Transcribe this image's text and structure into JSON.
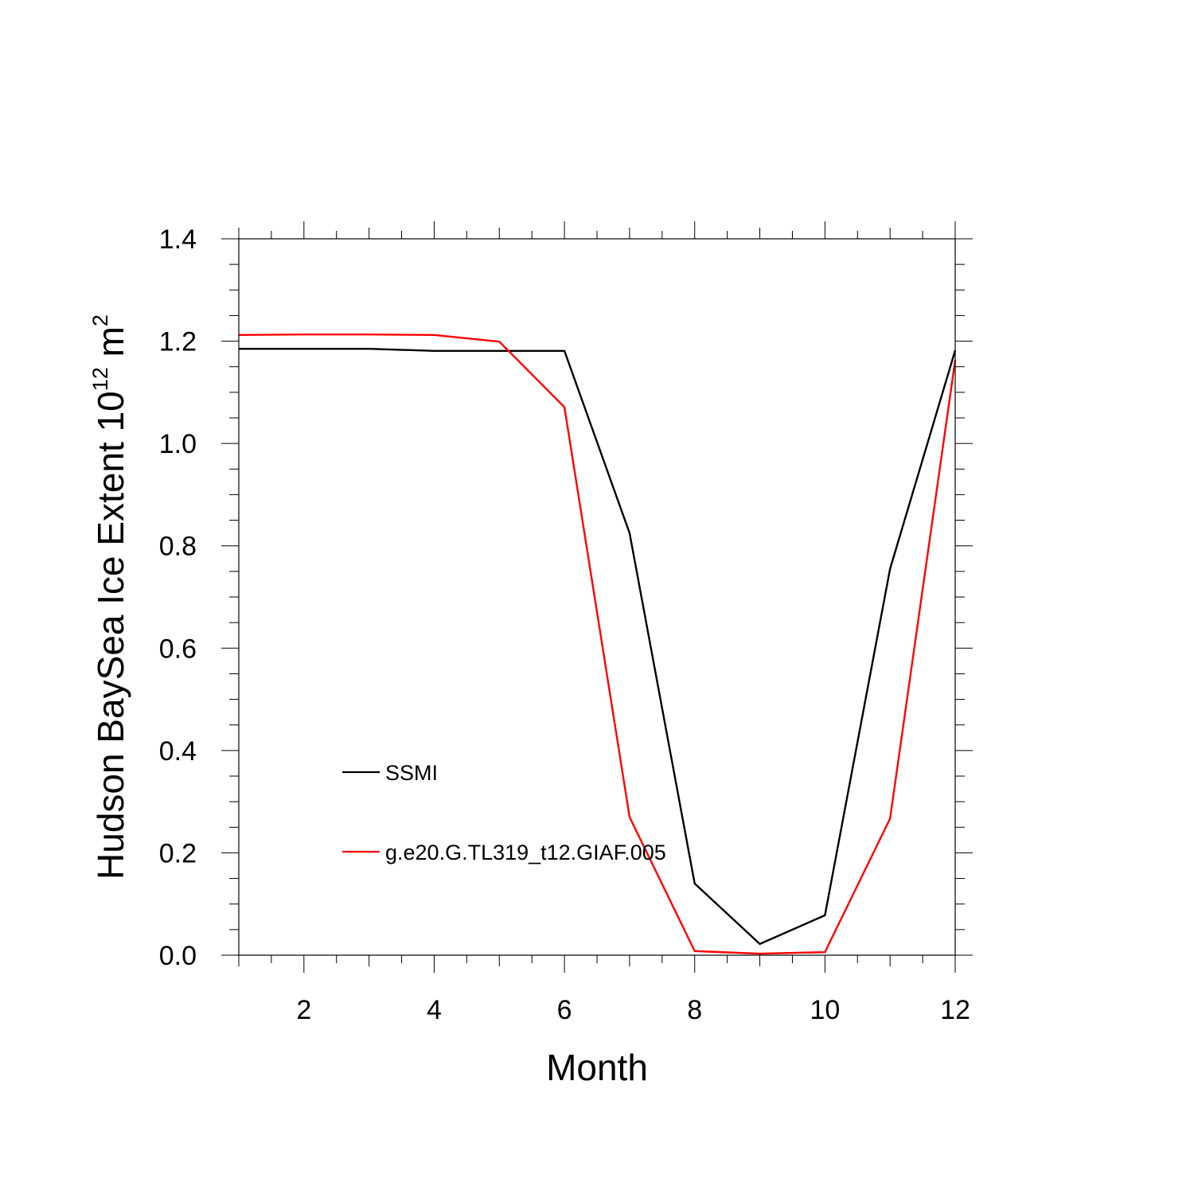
{
  "chart_data": {
    "type": "line",
    "title": "",
    "xlabel": "Month",
    "ylabel": "Hudson BaySea Ice Extent 10",
    "ylabel_exponent": "12",
    "ylabel_unit": " m",
    "ylabel_unit_exponent": "2",
    "x": [
      1,
      2,
      3,
      4,
      5,
      6,
      7,
      8,
      9,
      10,
      11,
      12
    ],
    "xlim": [
      1,
      12
    ],
    "ylim": [
      0,
      1.4
    ],
    "x_ticks": [
      "2",
      "4",
      "6",
      "8",
      "10",
      "12"
    ],
    "y_ticks": [
      "0.0",
      "0.2",
      "0.4",
      "0.6",
      "0.8",
      "1.0",
      "1.2",
      "1.4"
    ],
    "grid": false,
    "legend_position": "bottom-left (inside)",
    "series": [
      {
        "name": "SSMI",
        "color": "#000000",
        "values": [
          1.185,
          1.185,
          1.185,
          1.181,
          1.181,
          1.181,
          0.825,
          0.14,
          0.022,
          0.078,
          0.755,
          1.182
        ]
      },
      {
        "name": "g.e20.G.TL319_t12.GIAF.005",
        "color": "#ff0000",
        "values": [
          1.212,
          1.213,
          1.213,
          1.212,
          1.199,
          1.071,
          0.27,
          0.008,
          0.003,
          0.006,
          0.267,
          1.163
        ]
      }
    ]
  }
}
